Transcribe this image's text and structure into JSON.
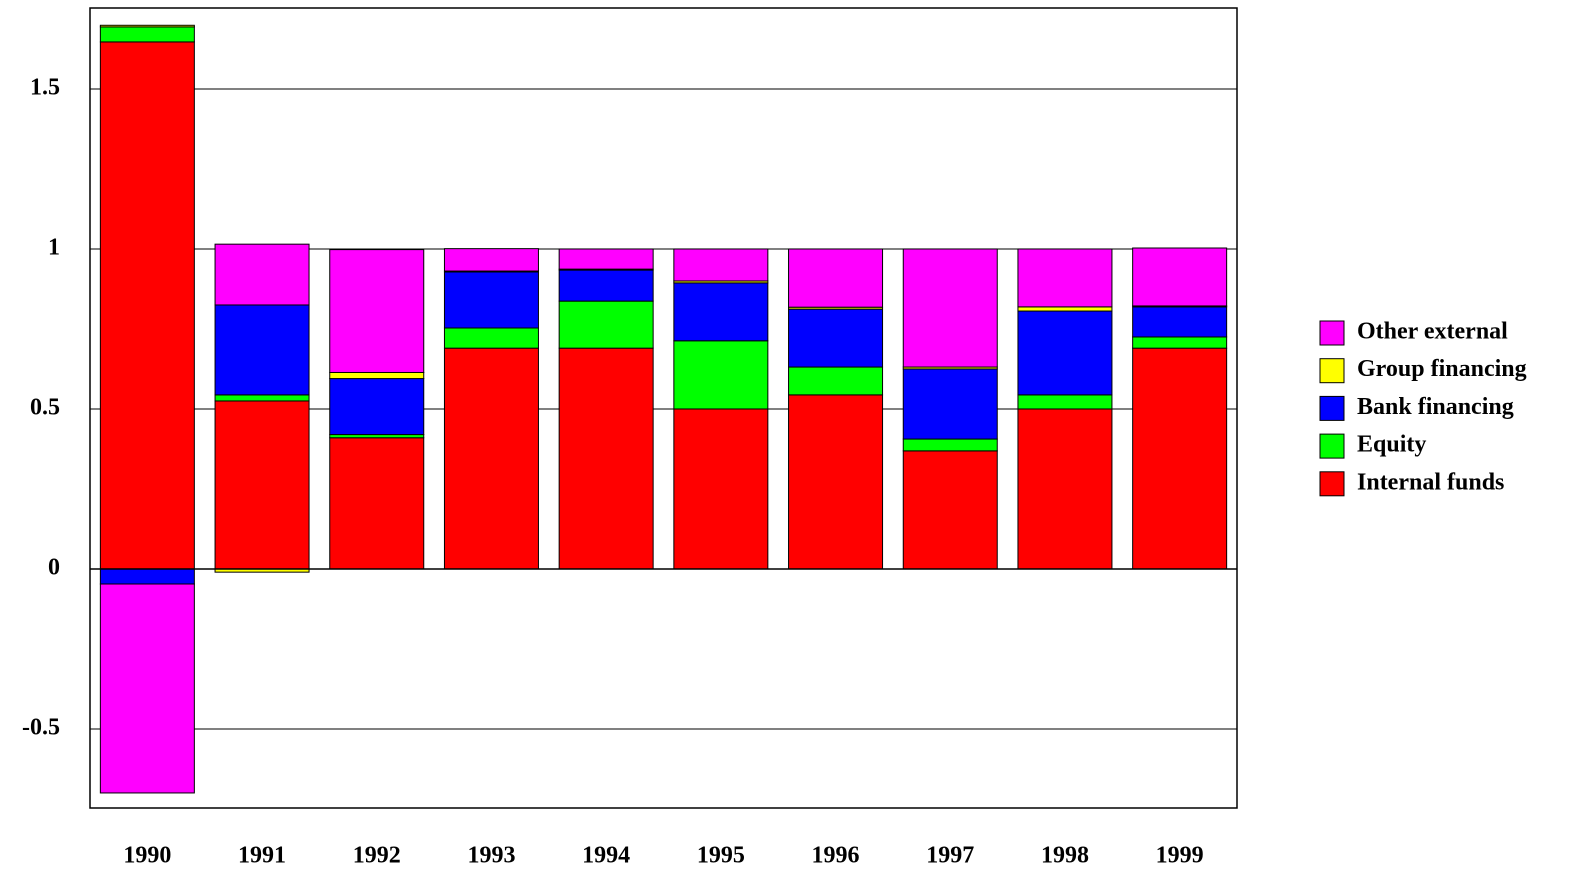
{
  "chart_data": {
    "type": "stacked_bar",
    "categories": [
      "1990",
      "1991",
      "1992",
      "1993",
      "1994",
      "1995",
      "1996",
      "1997",
      "1998",
      "1999"
    ],
    "series": [
      {
        "name": "Internal funds",
        "color": "#ff0000",
        "values": [
          1.647,
          0.525,
          0.41,
          0.69,
          0.69,
          0.5,
          0.544,
          0.369,
          0.5,
          0.69
        ]
      },
      {
        "name": "Equity",
        "color": "#00ff00",
        "values": [
          0.047,
          0.019,
          0.01,
          0.063,
          0.147,
          0.213,
          0.087,
          0.037,
          0.044,
          0.035
        ]
      },
      {
        "name": "Bank financing",
        "color": "#0000ff",
        "values": [
          -0.047,
          0.281,
          0.175,
          0.175,
          0.097,
          0.181,
          0.181,
          0.219,
          0.262,
          0.094
        ]
      },
      {
        "name": "Group financing",
        "color": "#ffff00",
        "values": [
          0.005,
          -0.01,
          0.019,
          0.003,
          0.003,
          0.006,
          0.006,
          0.006,
          0.013,
          0.003
        ]
      },
      {
        "name": "Other external",
        "color": "#ff00ff",
        "values": [
          -0.653,
          0.19,
          0.384,
          0.07,
          0.063,
          0.1,
          0.182,
          0.369,
          0.181,
          0.181
        ]
      }
    ],
    "ylim": [
      -0.747,
      1.753
    ],
    "yticks": [
      -0.5,
      0,
      0.5,
      1,
      1.5
    ],
    "grid": true
  }
}
